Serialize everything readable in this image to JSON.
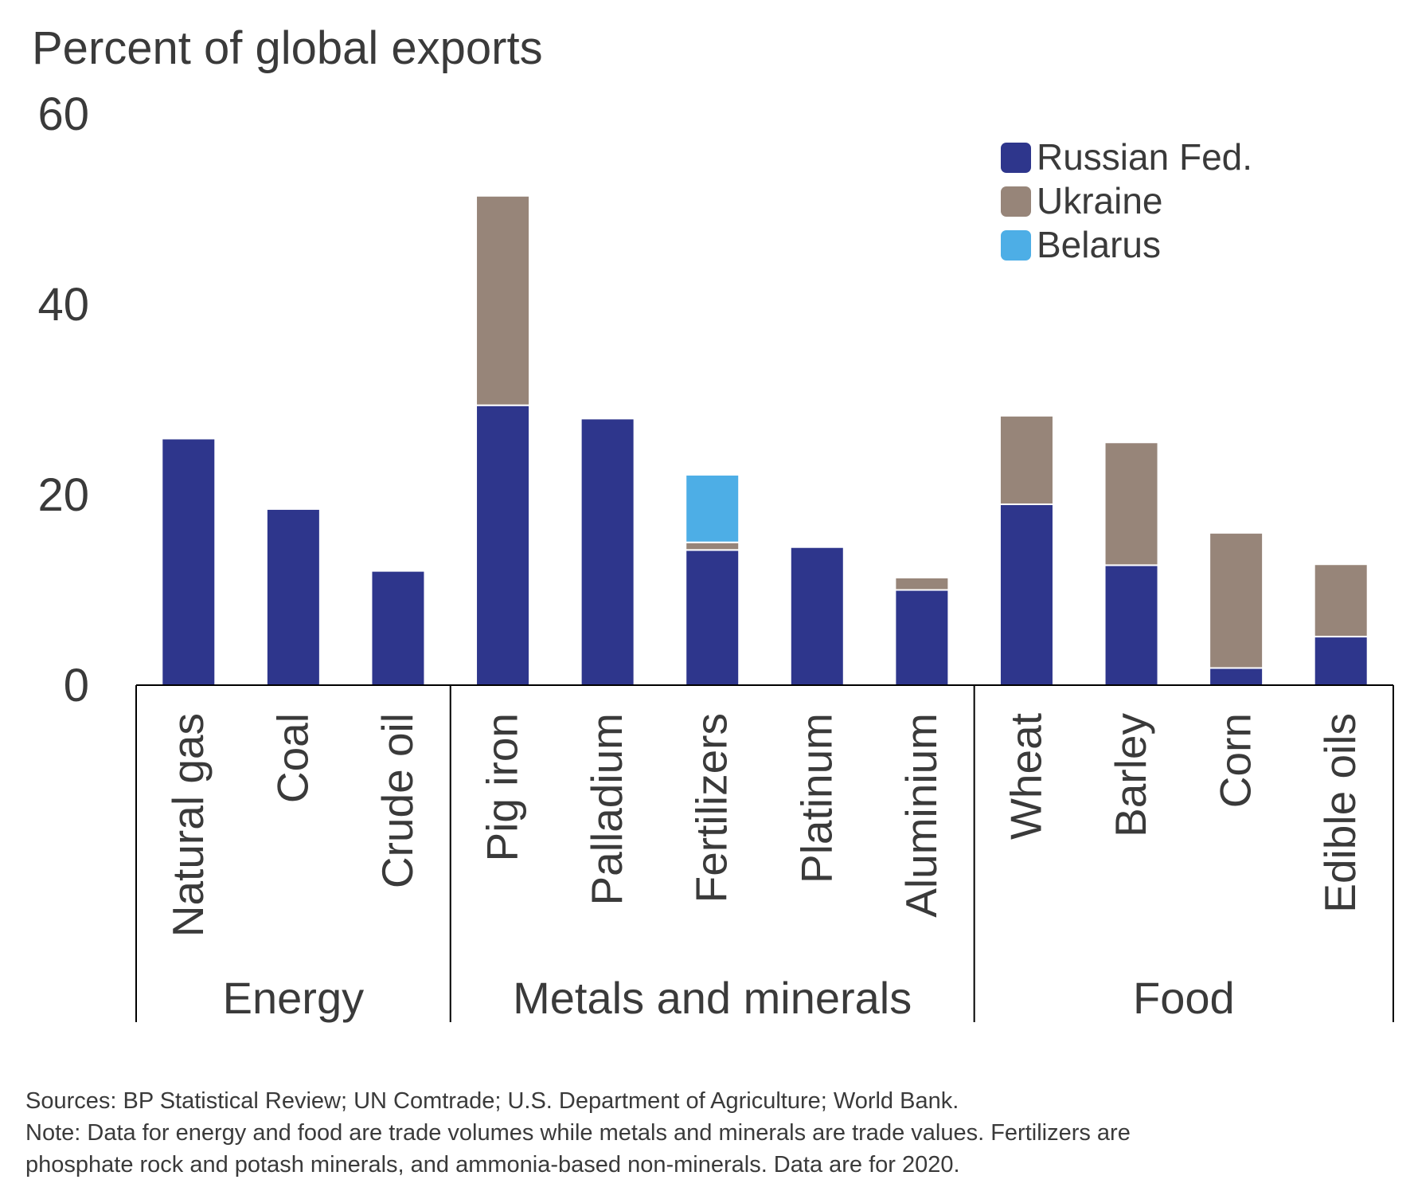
{
  "chart_data": {
    "type": "bar",
    "stacked": true,
    "title": "Percent of global exports",
    "ylim": [
      0,
      60
    ],
    "yticks": [
      0,
      20,
      40,
      60
    ],
    "grid": false,
    "legend_position": "top-right",
    "groups": [
      {
        "name": "Energy",
        "categories": [
          "Natural gas",
          "Coal",
          "Crude oil"
        ]
      },
      {
        "name": "Metals and minerals",
        "categories": [
          "Pig iron",
          "Palladium",
          "Fertilizers",
          "Platinum",
          "Aluminium"
        ]
      },
      {
        "name": "Food",
        "categories": [
          "Wheat",
          "Barley",
          "Corn",
          "Edible oils"
        ]
      }
    ],
    "categories": [
      "Natural gas",
      "Coal",
      "Crude oil",
      "Pig iron",
      "Palladium",
      "Fertilizers",
      "Platinum",
      "Aluminium",
      "Wheat",
      "Barley",
      "Corn",
      "Edible oils"
    ],
    "series": [
      {
        "name": "Russian Fed.",
        "color": "#2e368c",
        "values": [
          25.9,
          18.5,
          12.0,
          29.4,
          28.0,
          14.2,
          14.5,
          10.0,
          19.0,
          12.6,
          1.8,
          5.1
        ]
      },
      {
        "name": "Ukraine",
        "color": "#978579",
        "values": [
          0,
          0,
          0,
          22.0,
          0,
          0.8,
          0,
          1.3,
          9.3,
          12.9,
          14.2,
          7.6
        ]
      },
      {
        "name": "Belarus",
        "color": "#4daee6",
        "values": [
          0,
          0,
          0,
          0,
          0,
          7.1,
          0,
          0,
          0,
          0,
          0,
          0
        ]
      }
    ]
  },
  "notes": {
    "sources": "Sources: BP Statistical Review; UN Comtrade; U.S. Department of Agriculture; World Bank.",
    "note_line1": "Note: Data for energy and food are trade volumes while metals and minerals are trade values. Fertilizers are",
    "note_line2": "phosphate rock and potash minerals, and ammonia-based non-minerals. Data are for 2020."
  }
}
